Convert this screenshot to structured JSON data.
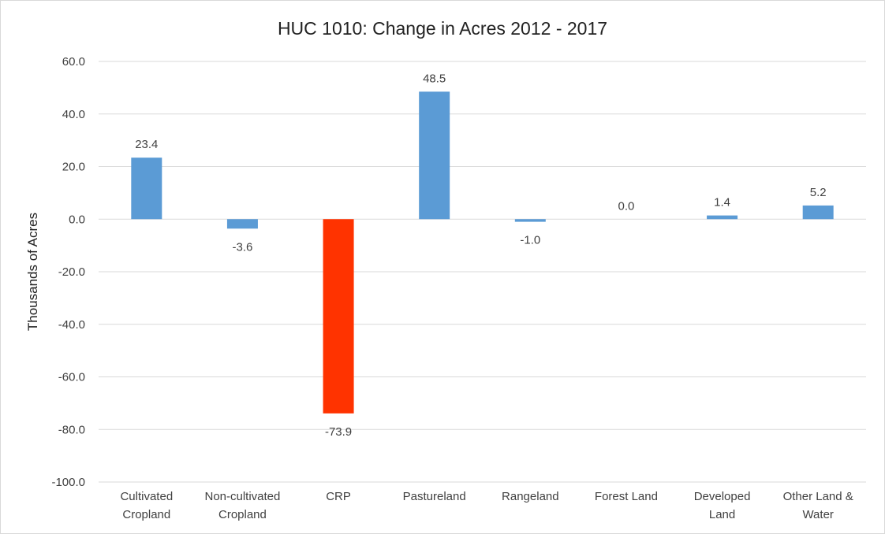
{
  "chart_data": {
    "type": "bar",
    "title": "HUC 1010: Change in Acres 2012 - 2017",
    "ylabel": "Thousands of Acres",
    "xlabel": "",
    "ylim": [
      -100,
      60
    ],
    "yticks": [
      60,
      40,
      20,
      0,
      -20,
      -40,
      -60,
      -80,
      -100
    ],
    "ytick_labels": [
      "60.0",
      "40.0",
      "20.0",
      "0.0",
      "-20.0",
      "-40.0",
      "-60.0",
      "-80.0",
      "-100.0"
    ],
    "grid": true,
    "legend": "none",
    "categories": [
      [
        "Cultivated",
        "Cropland"
      ],
      [
        "Non-cultivated",
        "Cropland"
      ],
      [
        "CRP"
      ],
      [
        "Pastureland"
      ],
      [
        "Rangeland"
      ],
      [
        "Forest Land"
      ],
      [
        "Developed",
        "Land"
      ],
      [
        "Other Land &",
        "Water"
      ]
    ],
    "values": [
      23.4,
      -3.6,
      -73.9,
      48.5,
      -1.0,
      0.0,
      1.4,
      5.2
    ],
    "data_labels": [
      "23.4",
      "-3.6",
      "-73.9",
      "48.5",
      "-1.0",
      "0.0",
      "1.4",
      "5.2"
    ],
    "colors": {
      "default_bar": "#5b9bd5",
      "highlight_bar": "#ff3300",
      "gridline": "#d9d9d9"
    },
    "highlight_index": 2
  }
}
